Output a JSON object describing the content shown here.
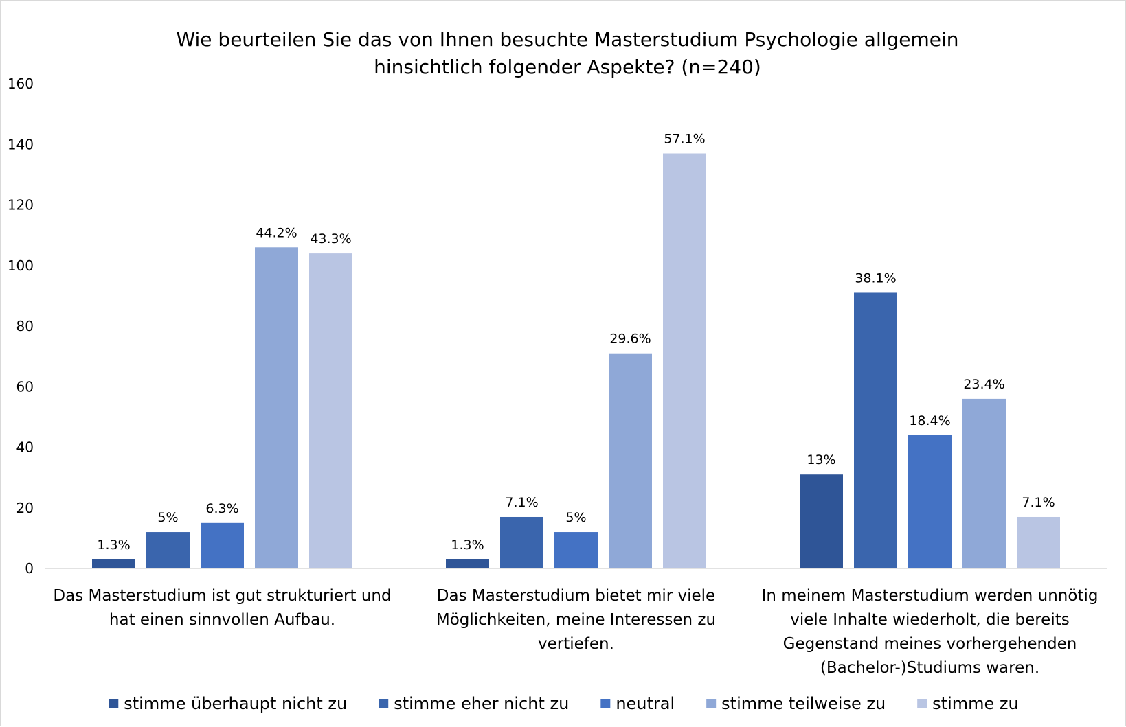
{
  "chart_data": {
    "type": "bar",
    "title": [
      "Wie beurteilen Sie das von Ihnen besuchte Masterstudium Psychologie allgemein",
      "hinsichtlich folgender Aspekte? (n=240)"
    ],
    "categories": [
      [
        "Das Masterstudium ist gut strukturiert und",
        "hat einen sinnvollen Aufbau."
      ],
      [
        "Das Masterstudium bietet mir viele",
        "Möglichkeiten, meine Interessen zu",
        "vertiefen."
      ],
      [
        "In meinem Masterstudium werden unnötig",
        "viele Inhalte wiederholt, die bereits",
        "Gegenstand meines vorhergehenden",
        "(Bachelor-)Studiums waren."
      ]
    ],
    "series": [
      {
        "name": "stimme überhaupt nicht zu",
        "color": "#2f5597",
        "values": [
          3,
          3,
          31
        ],
        "labels": [
          "1.3%",
          "1.3%",
          "13%"
        ]
      },
      {
        "name": "stimme eher nicht zu",
        "color": "#3a65ad",
        "values": [
          12,
          17,
          91
        ],
        "labels": [
          "5%",
          "7.1%",
          "38.1%"
        ]
      },
      {
        "name": "neutral",
        "color": "#4472c4",
        "values": [
          15,
          12,
          44
        ],
        "labels": [
          "6.3%",
          "5%",
          "18.4%"
        ]
      },
      {
        "name": "stimme teilweise zu",
        "color": "#8fa8d7",
        "values": [
          106,
          71,
          56
        ],
        "labels": [
          "44.2%",
          "29.6%",
          "23.4%"
        ]
      },
      {
        "name": "stimme zu",
        "color": "#b9c5e3",
        "values": [
          104,
          137,
          17
        ],
        "labels": [
          "43.3%",
          "57.1%",
          "7.1%"
        ]
      }
    ],
    "ylim": [
      0,
      160
    ],
    "yticks": [
      "0",
      "20",
      "40",
      "60",
      "80",
      "100",
      "120",
      "140",
      "160"
    ],
    "grid": false,
    "legend_position": "bottom"
  }
}
